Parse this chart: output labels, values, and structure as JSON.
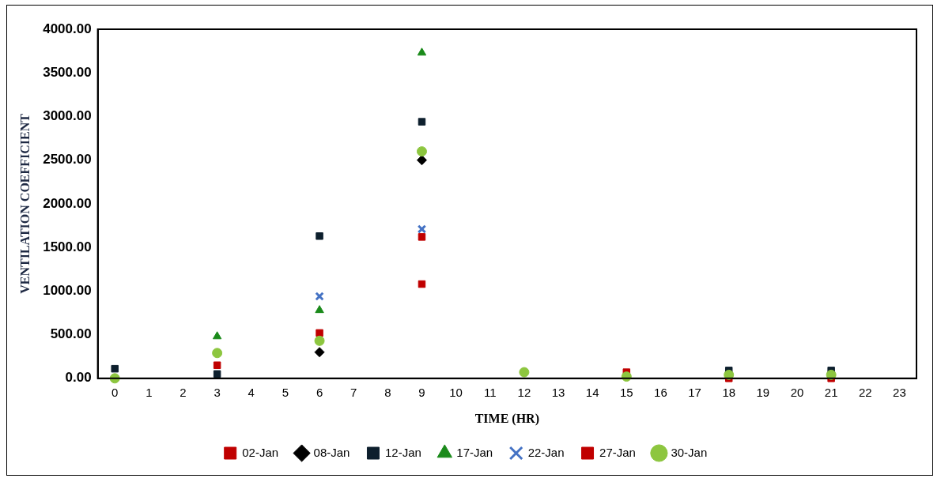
{
  "chart_data": {
    "type": "scatter",
    "xlabel": "TIME (HR)",
    "ylabel": "VENTILATION COEFFICIENT",
    "x": [
      0,
      3,
      6,
      9,
      12,
      15,
      18,
      21
    ],
    "series": [
      {
        "name": "02-Jan",
        "color": "#c00000",
        "marker": "square",
        "values": [
          null,
          null,
          null,
          1080,
          null,
          null,
          null,
          null
        ]
      },
      {
        "name": "08-Jan",
        "color": "#000000",
        "marker": "diamond",
        "values": [
          null,
          null,
          300,
          2500,
          null,
          null,
          null,
          null
        ]
      },
      {
        "name": "12-Jan",
        "color": "#0d1f2d",
        "marker": "square",
        "values": [
          110,
          50,
          1630,
          2940,
          null,
          null,
          90,
          90
        ]
      },
      {
        "name": "17-Jan",
        "color": "#1a8a1a",
        "marker": "triangle",
        "values": [
          null,
          480,
          780,
          3730,
          null,
          null,
          null,
          null
        ]
      },
      {
        "name": "22-Jan",
        "color": "#4472c4",
        "marker": "cross",
        "values": [
          null,
          null,
          940,
          1710,
          null,
          null,
          null,
          null
        ]
      },
      {
        "name": "27-Jan",
        "color": "#c00000",
        "marker": "square",
        "values": [
          null,
          150,
          520,
          1620,
          null,
          70,
          0,
          0
        ]
      },
      {
        "name": "30-Jan",
        "color": "#8dc63f",
        "marker": "circle",
        "values": [
          0,
          290,
          430,
          2600,
          70,
          20,
          40,
          40
        ]
      }
    ],
    "xlim": [
      -0.5,
      23.5
    ],
    "xticks": [
      0,
      1,
      2,
      3,
      4,
      5,
      6,
      7,
      8,
      9,
      10,
      11,
      12,
      13,
      14,
      15,
      16,
      17,
      18,
      19,
      20,
      21,
      22,
      23
    ],
    "ylim": [
      0,
      4000
    ],
    "yticks": [
      {
        "value": 0,
        "label": "0.00"
      },
      {
        "value": 500,
        "label": "500.00"
      },
      {
        "value": 1000,
        "label": "1000.00"
      },
      {
        "value": 1500,
        "label": "1500.00"
      },
      {
        "value": 2000,
        "label": "2000.00"
      },
      {
        "value": 2500,
        "label": "2500.00"
      },
      {
        "value": 3000,
        "label": "3000.00"
      },
      {
        "value": 3500,
        "label": "3500.00"
      },
      {
        "value": 4000,
        "label": "4000.00"
      }
    ],
    "grid": false,
    "legend": "bottom"
  }
}
